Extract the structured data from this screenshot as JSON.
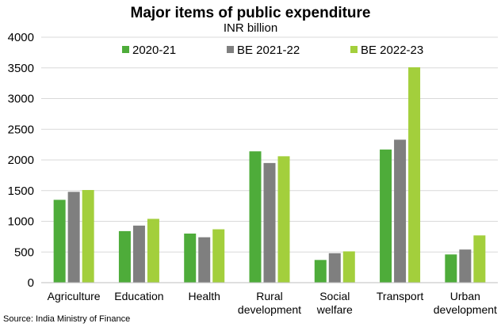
{
  "chart_data": {
    "type": "bar",
    "title": "Major items of public expenditure",
    "subtitle": "INR billion",
    "categories": [
      "Agriculture",
      "Education",
      "Health",
      "Rural development",
      "Social welfare",
      "Transport",
      "Urban development"
    ],
    "category_lines": [
      [
        "Agriculture"
      ],
      [
        "Education"
      ],
      [
        "Health"
      ],
      [
        "Rural",
        "development"
      ],
      [
        "Social",
        "welfare"
      ],
      [
        "Transport"
      ],
      [
        "Urban",
        "development"
      ]
    ],
    "series": [
      {
        "name": "2020-21",
        "color": "#4eac3a",
        "values": [
          1350,
          840,
          800,
          2140,
          370,
          2170,
          460
        ]
      },
      {
        "name": "BE 2021-22",
        "color": "#7f7f7f",
        "values": [
          1480,
          930,
          740,
          1950,
          480,
          2330,
          540
        ]
      },
      {
        "name": "BE 2022-23",
        "color": "#a3cf3c",
        "values": [
          1510,
          1040,
          870,
          2060,
          510,
          3510,
          770
        ]
      }
    ],
    "ylim": [
      0,
      4000
    ],
    "yticks": [
      0,
      500,
      1000,
      1500,
      2000,
      2500,
      3000,
      3500,
      4000
    ],
    "grid": true,
    "legend_position": "top",
    "source": "Source: India Ministry of Finance"
  }
}
